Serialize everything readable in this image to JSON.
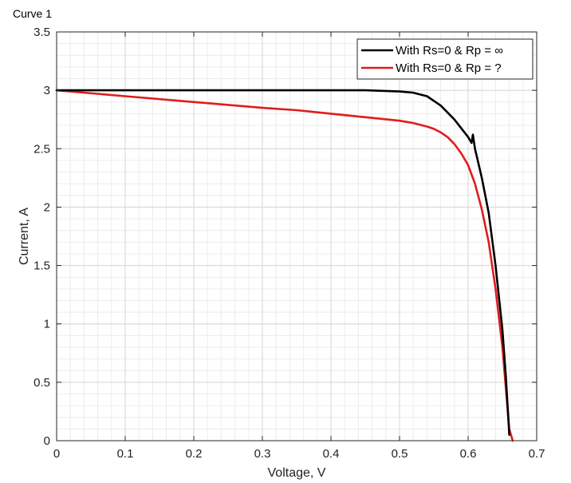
{
  "page_title": "Curve 1",
  "chart_data": {
    "type": "line",
    "title": "",
    "xlabel": "Voltage, V",
    "ylabel": "Current, A",
    "xlim": [
      0,
      0.7
    ],
    "ylim": [
      0,
      3.5
    ],
    "xticks": [
      0,
      0.1,
      0.2,
      0.3,
      0.4,
      0.5,
      0.6,
      0.7
    ],
    "yticks": [
      0,
      0.5,
      1,
      1.5,
      2,
      2.5,
      3,
      3.5
    ],
    "xtick_labels": [
      "0",
      "0.1",
      "0.2",
      "0.3",
      "0.4",
      "0.5",
      "0.6",
      "0.7"
    ],
    "ytick_labels": [
      "0",
      "0.5",
      "1",
      "1.5",
      "2",
      "2.5",
      "3",
      "3.5"
    ],
    "grid": true,
    "minor_grid": true,
    "legend_position": "top-right",
    "series": [
      {
        "name": "With Rs=0 & Rp = ∞",
        "color": "#000000",
        "x": [
          0,
          0.1,
          0.2,
          0.3,
          0.4,
          0.45,
          0.5,
          0.52,
          0.54,
          0.56,
          0.58,
          0.6,
          0.605,
          0.607,
          0.61,
          0.62,
          0.63,
          0.64,
          0.65,
          0.655,
          0.66
        ],
        "y": [
          3.0,
          3.0,
          3.0,
          3.0,
          3.0,
          3.0,
          2.99,
          2.98,
          2.95,
          2.87,
          2.75,
          2.6,
          2.55,
          2.62,
          2.5,
          2.25,
          1.95,
          1.5,
          0.95,
          0.55,
          0.05
        ]
      },
      {
        "name": "With Rs=0 & Rp = ?",
        "color": "#e01c1c",
        "x": [
          0,
          0.1,
          0.2,
          0.3,
          0.35,
          0.4,
          0.45,
          0.5,
          0.52,
          0.54,
          0.55,
          0.56,
          0.57,
          0.58,
          0.59,
          0.6,
          0.61,
          0.62,
          0.63,
          0.64,
          0.65,
          0.66,
          0.665
        ],
        "y": [
          3.0,
          2.95,
          2.9,
          2.85,
          2.83,
          2.8,
          2.77,
          2.74,
          2.72,
          2.69,
          2.67,
          2.64,
          2.6,
          2.54,
          2.46,
          2.36,
          2.2,
          1.98,
          1.7,
          1.3,
          0.8,
          0.1,
          0.0
        ]
      }
    ]
  }
}
